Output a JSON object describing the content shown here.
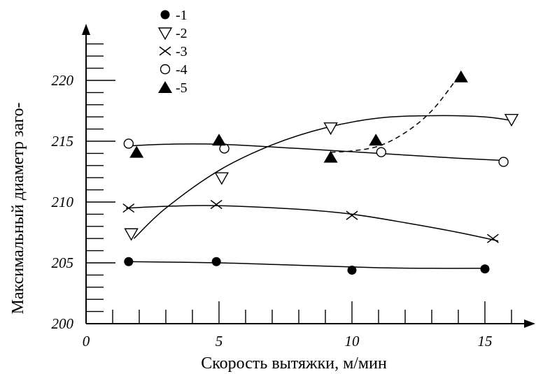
{
  "chart_data": {
    "type": "scatter",
    "title": "",
    "xlabel": "Скорость вытяжки, м/мин",
    "ylabel": "Максимальный диаметр заго-",
    "xlim": [
      0,
      16.3
    ],
    "ylim": [
      200,
      224
    ],
    "x_ticks": [
      0,
      5,
      10,
      15
    ],
    "y_ticks": [
      200,
      205,
      210,
      215,
      220
    ],
    "legend_position": "top-center",
    "series": [
      {
        "name": "-1",
        "marker": "filled-circle",
        "points": [
          [
            1.6,
            205.1
          ],
          [
            4.9,
            205.1
          ],
          [
            10.0,
            204.4
          ],
          [
            15.0,
            204.5
          ]
        ],
        "curve": [
          [
            1.5,
            205.1
          ],
          [
            5,
            205.0
          ],
          [
            8,
            204.8
          ],
          [
            11,
            204.6
          ],
          [
            13,
            204.55
          ],
          [
            15,
            204.55
          ]
        ],
        "curve_style": "solid"
      },
      {
        "name": "-2",
        "marker": "open-triangle-down",
        "points": [
          [
            1.7,
            207.4
          ],
          [
            5.1,
            212.0
          ],
          [
            9.2,
            216.1
          ],
          [
            16.0,
            216.8
          ]
        ],
        "curve": [
          [
            1.8,
            207.0
          ],
          [
            3,
            209.5
          ],
          [
            5,
            212.6
          ],
          [
            7,
            214.7
          ],
          [
            9,
            216.1
          ],
          [
            11,
            216.9
          ],
          [
            13,
            217.1
          ],
          [
            15,
            217.0
          ],
          [
            16,
            216.7
          ]
        ],
        "curve_style": "solid"
      },
      {
        "name": "-3",
        "marker": "x",
        "points": [
          [
            1.6,
            209.5
          ],
          [
            4.9,
            209.8
          ],
          [
            10.0,
            208.9
          ],
          [
            15.3,
            207.0
          ]
        ],
        "curve": [
          [
            1.5,
            209.5
          ],
          [
            3,
            209.65
          ],
          [
            5,
            209.7
          ],
          [
            8,
            209.4
          ],
          [
            10,
            209.0
          ],
          [
            12,
            208.3
          ],
          [
            14,
            207.5
          ],
          [
            15.5,
            206.8
          ]
        ],
        "curve_style": "solid"
      },
      {
        "name": "-4",
        "marker": "open-circle",
        "points": [
          [
            1.6,
            214.8
          ],
          [
            5.2,
            214.4
          ],
          [
            11.1,
            214.1
          ],
          [
            15.7,
            213.3
          ]
        ],
        "curve": [
          [
            1.5,
            214.6
          ],
          [
            3,
            214.75
          ],
          [
            5,
            214.75
          ],
          [
            8,
            214.4
          ],
          [
            11,
            214.0
          ],
          [
            14,
            213.6
          ],
          [
            15.8,
            213.4
          ]
        ],
        "curve_style": "solid"
      },
      {
        "name": "-5",
        "marker": "filled-triangle-up",
        "points": [
          [
            1.9,
            214.1
          ],
          [
            5.0,
            215.1
          ],
          [
            9.2,
            213.7
          ],
          [
            10.9,
            215.1
          ],
          [
            14.1,
            220.3
          ]
        ],
        "curve": [
          [
            9.2,
            214.1
          ],
          [
            10,
            214.2
          ],
          [
            11,
            214.6
          ],
          [
            12,
            215.7
          ],
          [
            13,
            217.5
          ],
          [
            14,
            220.3
          ]
        ],
        "curve_style": "dashed"
      }
    ]
  }
}
